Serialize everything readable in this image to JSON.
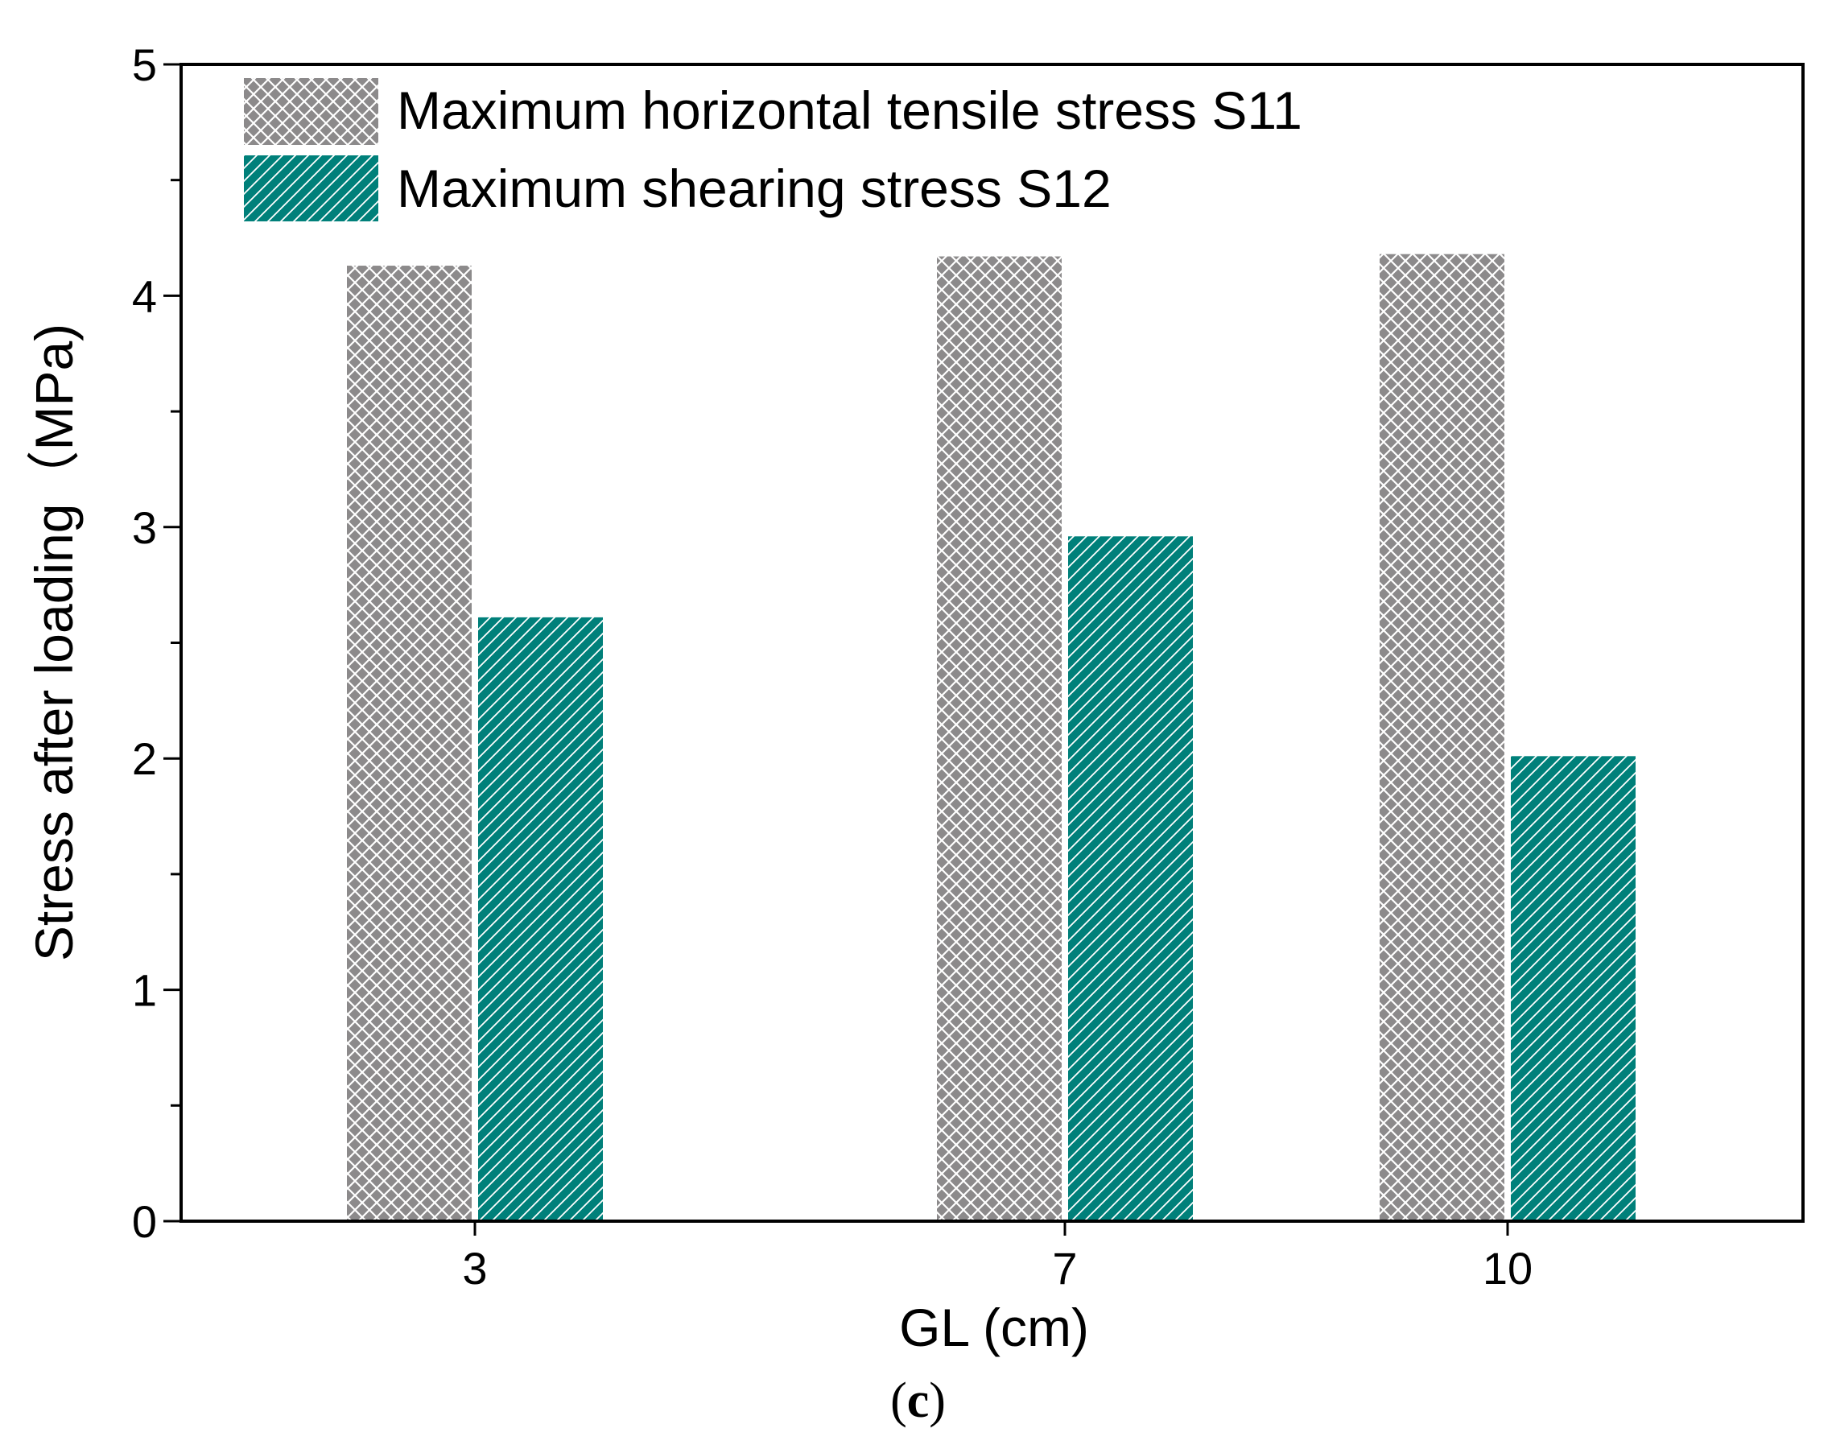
{
  "chart_data": {
    "type": "bar",
    "title": "",
    "xlabel": "GL (cm)",
    "ylabel": "Stress after loading（MPa)",
    "categories": [
      "3",
      "7",
      "10"
    ],
    "ylim": [
      0,
      5
    ],
    "yticks": [
      0,
      1,
      2,
      3,
      4,
      5
    ],
    "grid": false,
    "legend_position": "top-left",
    "series": [
      {
        "name": "Maximum horizontal tensile stress S11",
        "values": [
          4.13,
          4.17,
          4.18
        ],
        "color": "#8c8a8b",
        "pattern": "crosshatch"
      },
      {
        "name": "Maximum shearing stress S12",
        "values": [
          2.61,
          2.96,
          2.01
        ],
        "color": "#00807a",
        "pattern": "diagonal"
      }
    ]
  },
  "panel_label": {
    "open": "(",
    "letter": "c",
    "close": ")"
  }
}
